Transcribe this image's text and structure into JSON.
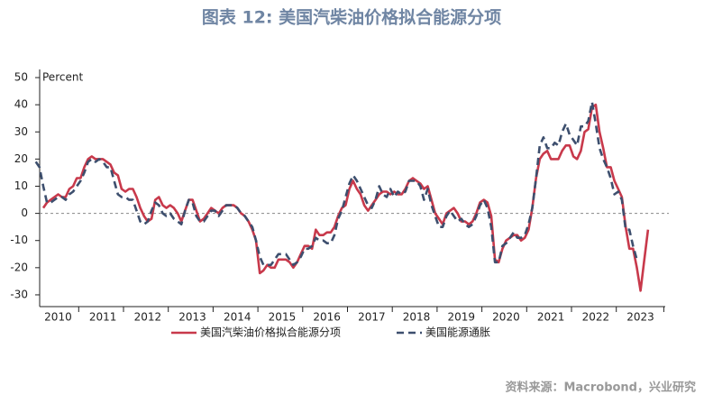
{
  "chart_data": {
    "type": "line",
    "title": "图表 12: 美国汽柴油价格拟合能源分项",
    "ylabel": "Percent",
    "source": "资料来源：Macrobond，兴业研究",
    "categories": [
      "2010",
      "2011",
      "2012",
      "2013",
      "2014",
      "2015",
      "2016",
      "2017",
      "2018",
      "2019",
      "2020",
      "2021",
      "2022",
      "2023"
    ],
    "ylim": [
      -34,
      53
    ],
    "yticks": [
      -30,
      -20,
      -10,
      0,
      10,
      20,
      30,
      40,
      50
    ],
    "hline": 0,
    "grid": false,
    "series": [
      {
        "name": "美国汽柴油价格拟合能源分项",
        "color": "#c8394b",
        "dash": false,
        "values": [
          [
            null,
            null,
            2,
            4,
            5,
            6,
            7,
            6,
            6,
            9,
            10,
            13
          ],
          [
            13,
            17,
            20,
            21,
            20,
            20,
            20,
            19,
            18,
            15,
            14,
            9
          ],
          [
            8,
            9,
            9,
            6,
            2,
            -1,
            -3,
            -2,
            5,
            6,
            3,
            2
          ],
          [
            3,
            2,
            0,
            -3,
            1,
            5,
            5,
            1,
            -3,
            -2,
            0,
            2
          ],
          [
            1,
            0,
            2,
            3,
            3,
            3,
            2,
            0,
            -1,
            -3,
            -6,
            -10
          ],
          [
            -22,
            -21,
            -19,
            -20,
            -20,
            -17,
            -17,
            -17,
            -18,
            -20,
            -18,
            -15
          ],
          [
            -12,
            -12,
            -13,
            -6,
            -8,
            -8,
            -7,
            -7,
            -5,
            -1,
            2,
            3
          ],
          [
            9,
            12,
            9,
            7,
            3,
            1,
            3,
            5,
            7,
            8,
            8,
            7
          ],
          [
            8,
            7,
            7,
            9,
            12,
            13,
            12,
            11,
            9,
            10,
            5,
            0
          ],
          [
            -2,
            -4,
            0,
            1,
            2,
            0,
            -3,
            -3,
            -4,
            -3,
            0,
            4
          ],
          [
            5,
            4,
            -1,
            -17,
            -18,
            -13,
            -10,
            -9,
            -8,
            -8,
            -10,
            -9
          ],
          [
            -6,
            2,
            13,
            20,
            22,
            23,
            20,
            20,
            20,
            23,
            25,
            25
          ],
          [
            21,
            20,
            23,
            30,
            31,
            39,
            40,
            30,
            24,
            17,
            17,
            12
          ],
          [
            9,
            6,
            -5,
            -13,
            -13,
            -20,
            -28.5,
            -17,
            -6,
            null,
            null,
            null
          ]
        ]
      },
      {
        "name": "美国能源通胀",
        "color": "#3d4f6e",
        "dash": true,
        "values": [
          [
            19,
            17,
            10,
            4,
            4,
            5,
            6,
            6,
            5,
            7,
            8,
            10
          ],
          [
            12,
            15,
            19,
            20,
            19,
            20,
            19,
            17,
            17,
            12,
            7,
            6
          ],
          [
            6,
            5,
            5,
            1,
            -3,
            -4,
            -3,
            1,
            4,
            3,
            0,
            -1
          ],
          [
            0,
            -2,
            -3,
            -4,
            1,
            5,
            4,
            -1,
            -3,
            -3,
            -1,
            1
          ],
          [
            1,
            -1,
            1,
            3,
            3,
            3,
            2,
            0,
            -1,
            -3,
            -5,
            -10
          ],
          [
            -16,
            -19,
            -19,
            -19,
            -17,
            -15,
            -15,
            -15,
            -17,
            -19,
            -18,
            -16
          ],
          [
            -13,
            -13,
            -12,
            -9,
            -10,
            -10,
            -11,
            -11,
            -8,
            -2,
            1,
            6
          ],
          [
            11,
            14,
            12,
            9,
            6,
            3,
            2,
            5,
            10,
            7,
            6,
            9
          ],
          [
            6,
            8,
            7,
            8,
            12,
            12,
            12,
            10,
            5,
            9,
            3,
            -1
          ],
          [
            -5,
            -5,
            -1,
            1,
            -1,
            -3,
            -2,
            -4,
            -5,
            -4,
            -1,
            3
          ],
          [
            5,
            2,
            -5,
            -18,
            -18,
            -12,
            -11,
            -9,
            -7,
            -9,
            -9,
            -8
          ],
          [
            -4,
            2,
            13,
            25,
            28,
            24,
            24,
            26,
            25,
            30,
            33,
            29
          ],
          [
            27,
            25,
            32,
            32,
            34,
            41,
            33,
            24,
            20,
            17,
            13,
            7
          ],
          [
            8,
            5,
            -6,
            -6,
            -12,
            -17,
            null,
            null,
            null,
            null,
            null,
            null
          ]
        ]
      }
    ]
  }
}
